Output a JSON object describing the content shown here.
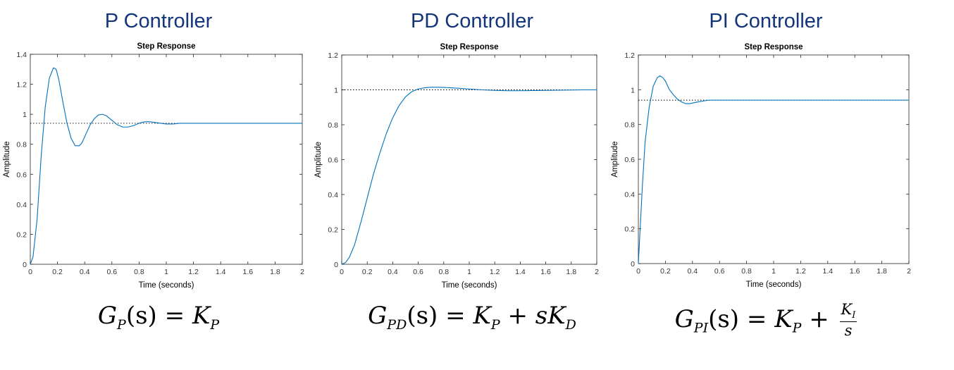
{
  "chart_data": [
    {
      "type": "line",
      "heading": "P Controller",
      "title": "Step Response",
      "xlabel": "Time (seconds)",
      "ylabel": "Amplitude",
      "xlim": [
        0,
        2
      ],
      "ylim": [
        0,
        1.4
      ],
      "xticks": [
        "0",
        "0.2",
        "0.4",
        "0.6",
        "0.8",
        "1",
        "1.2",
        "1.4",
        "1.6",
        "1.8",
        "2"
      ],
      "yticks": [
        "0",
        "0.2",
        "0.4",
        "0.6",
        "0.8",
        "1",
        "1.2",
        "1.4"
      ],
      "steady_state": 0.94,
      "x": [
        0,
        0.02,
        0.05,
        0.08,
        0.11,
        0.14,
        0.17,
        0.19,
        0.21,
        0.24,
        0.27,
        0.3,
        0.33,
        0.36,
        0.38,
        0.41,
        0.44,
        0.47,
        0.5,
        0.53,
        0.56,
        0.6,
        0.64,
        0.68,
        0.72,
        0.76,
        0.8,
        0.84,
        0.88,
        0.92,
        0.96,
        1.0,
        1.05,
        1.1,
        1.15,
        1.2,
        1.3,
        1.5,
        1.75,
        2.0
      ],
      "y": [
        0,
        0.05,
        0.3,
        0.72,
        1.05,
        1.24,
        1.31,
        1.3,
        1.23,
        1.08,
        0.94,
        0.84,
        0.79,
        0.79,
        0.81,
        0.87,
        0.93,
        0.97,
        0.995,
        1.0,
        0.99,
        0.96,
        0.93,
        0.915,
        0.915,
        0.925,
        0.94,
        0.95,
        0.95,
        0.945,
        0.94,
        0.935,
        0.935,
        0.94,
        0.94,
        0.94,
        0.94,
        0.94,
        0.94,
        0.94
      ]
    },
    {
      "type": "line",
      "heading": "PD Controller",
      "title": "Step Response",
      "xlabel": "Time (seconds)",
      "ylabel": "Amplitude",
      "xlim": [
        0,
        2
      ],
      "ylim": [
        0,
        1.2
      ],
      "xticks": [
        "0",
        "0.2",
        "0.4",
        "0.6",
        "0.8",
        "1",
        "1.2",
        "1.4",
        "1.6",
        "1.8",
        "2"
      ],
      "yticks": [
        "0",
        "0.2",
        "0.4",
        "0.6",
        "0.8",
        "1",
        "1.2"
      ],
      "steady_state": 1.0,
      "x": [
        0,
        0.03,
        0.06,
        0.1,
        0.15,
        0.2,
        0.25,
        0.3,
        0.35,
        0.4,
        0.45,
        0.5,
        0.55,
        0.6,
        0.65,
        0.7,
        0.75,
        0.8,
        0.85,
        0.9,
        1.0,
        1.1,
        1.2,
        1.3,
        1.4,
        1.5,
        1.6,
        1.7,
        1.8,
        1.9,
        2.0
      ],
      "y": [
        0,
        0.01,
        0.04,
        0.11,
        0.24,
        0.38,
        0.52,
        0.64,
        0.75,
        0.84,
        0.91,
        0.96,
        0.99,
        1.005,
        1.012,
        1.015,
        1.015,
        1.014,
        1.012,
        1.01,
        1.005,
        1.0,
        0.997,
        0.995,
        0.995,
        0.996,
        0.997,
        0.998,
        0.999,
        1.0,
        1.0
      ]
    },
    {
      "type": "line",
      "heading": "PI Controller",
      "title": "Step Response",
      "xlabel": "Time (seconds)",
      "ylabel": "Amplitude",
      "xlim": [
        0,
        2
      ],
      "ylim": [
        0,
        1.2
      ],
      "xticks": [
        "0",
        "0.2",
        "0.4",
        "0.6",
        "0.8",
        "1",
        "1.2",
        "1.4",
        "1.6",
        "1.8",
        "2"
      ],
      "yticks": [
        "0",
        "0.2",
        "0.4",
        "0.6",
        "0.8",
        "1",
        "1.2"
      ],
      "steady_state": 0.94,
      "x": [
        0,
        0.01,
        0.03,
        0.05,
        0.08,
        0.11,
        0.14,
        0.16,
        0.18,
        0.2,
        0.23,
        0.26,
        0.29,
        0.32,
        0.35,
        0.38,
        0.41,
        0.44,
        0.48,
        0.52,
        0.55,
        0.6,
        0.8,
        1.0,
        1.5,
        2.0
      ],
      "y": [
        0,
        0.15,
        0.45,
        0.7,
        0.9,
        1.02,
        1.07,
        1.08,
        1.07,
        1.05,
        1.0,
        0.97,
        0.945,
        0.93,
        0.92,
        0.92,
        0.925,
        0.93,
        0.935,
        0.94,
        0.94,
        0.94,
        0.94,
        0.94,
        0.94,
        0.94
      ]
    }
  ],
  "formulas": {
    "p": {
      "lhs_sym": "G",
      "lhs_sub": "P",
      "arg": "(s)",
      "eq": "=",
      "rhs_sym": "K",
      "rhs_sub": "P"
    },
    "pd": {
      "lhs_sym": "G",
      "lhs_sub": "PD",
      "arg": "(s)",
      "eq": "=",
      "rhs_sym": "K",
      "rhs_sub": "P",
      "plus": "+",
      "term_s": "s",
      "term_sym": "K",
      "term_sub": "D"
    },
    "pi": {
      "lhs_sym": "G",
      "lhs_sub": "PI",
      "arg": "(s)",
      "eq": "=",
      "rhs_sym": "K",
      "rhs_sub": "P",
      "plus": "+",
      "num_sym": "K",
      "num_sub": "I",
      "den": "s"
    }
  },
  "colors": {
    "heading": "#13357a",
    "line": "#0072bd",
    "axis": "#262626",
    "reference": "#000000"
  }
}
